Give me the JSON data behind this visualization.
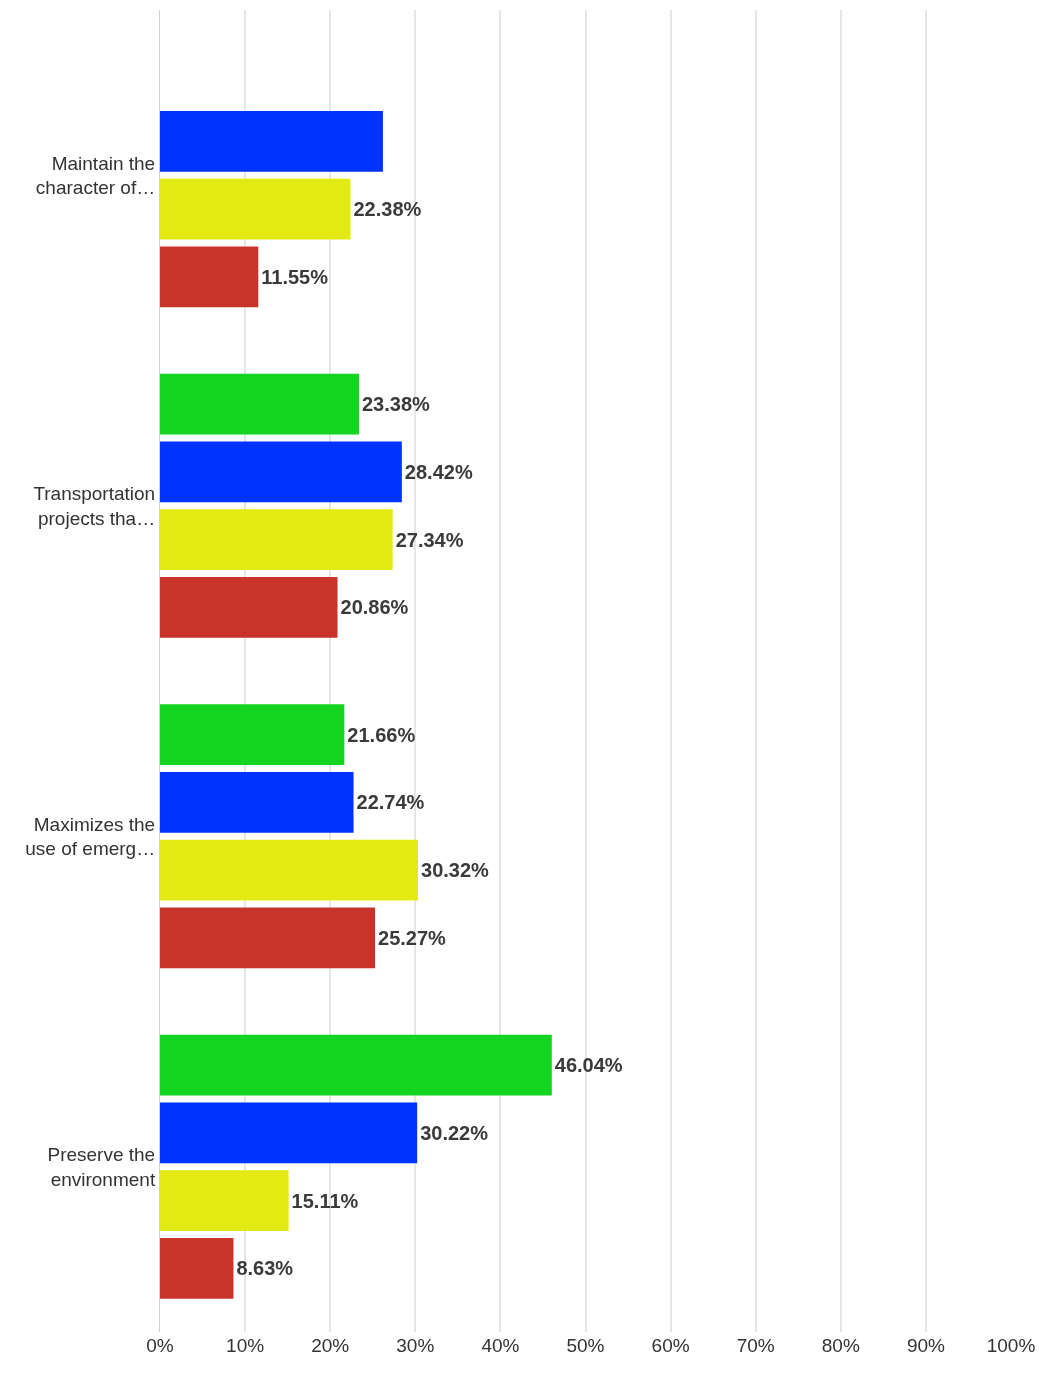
{
  "chart_data": {
    "type": "bar",
    "orientation": "horizontal",
    "categories": [
      "Maintain the character of…",
      "Transportation projects tha…",
      "Maximizes the use of emerg…",
      "Preserve the environment"
    ],
    "series": [
      {
        "color": "#13d421",
        "values": [
          null,
          23.38,
          21.66,
          46.04
        ],
        "value_labels": [
          null,
          "23.38%",
          "21.66%",
          "46.04%"
        ]
      },
      {
        "color": "#0033ff",
        "values": [
          26.2,
          28.42,
          22.74,
          30.22
        ],
        "value_labels": [
          null,
          "28.42%",
          "22.74%",
          "30.22%"
        ]
      },
      {
        "color": "#e3e912",
        "values": [
          22.38,
          27.34,
          30.32,
          15.11
        ],
        "value_labels": [
          "22.38%",
          "27.34%",
          "30.32%",
          "15.11%"
        ]
      },
      {
        "color": "#c8342c",
        "values": [
          11.55,
          20.86,
          25.27,
          8.63
        ],
        "value_labels": [
          "11.55%",
          "20.86%",
          "25.27%",
          "8.63%"
        ]
      }
    ],
    "xlim": [
      0,
      100
    ],
    "xticks": [
      {
        "value": 0,
        "label": "0%"
      },
      {
        "value": 10,
        "label": "10%"
      },
      {
        "value": 20,
        "label": "20%"
      },
      {
        "value": 30,
        "label": "30%"
      },
      {
        "value": 40,
        "label": "40%"
      },
      {
        "value": 50,
        "label": "50%"
      },
      {
        "value": 60,
        "label": "60%"
      },
      {
        "value": 70,
        "label": "70%"
      },
      {
        "value": 80,
        "label": "80%"
      },
      {
        "value": 90,
        "label": "90%"
      },
      {
        "value": 100,
        "label": "100%"
      }
    ],
    "grid": "x"
  }
}
